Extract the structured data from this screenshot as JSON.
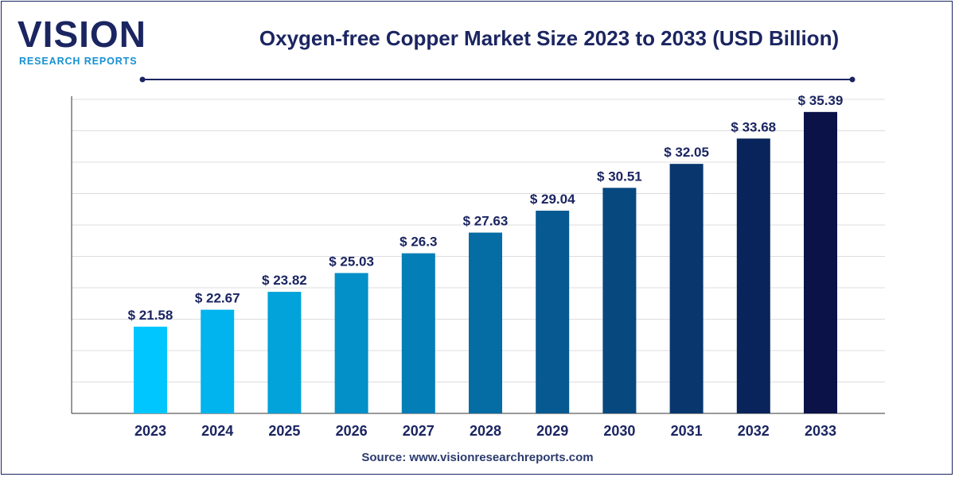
{
  "header": {
    "logo_word": "VISION",
    "logo_sub": "RESEARCH REPORTS",
    "title": "Oxygen-free Copper Market Size 2023 to 2033 (USD Billion)"
  },
  "source": "Source: www.visionresearchreports.com",
  "colors": {
    "brand": "#1b2561",
    "accent": "#1590d3",
    "grid": "#dcdcdc",
    "bar_gradient": [
      "#00c6ff",
      "#0a1248"
    ]
  },
  "chart_data": {
    "type": "bar",
    "title": "Oxygen-free Copper Market Size 2023 to 2033 (USD Billion)",
    "xlabel": "",
    "ylabel": "",
    "categories": [
      "2023",
      "2024",
      "2025",
      "2026",
      "2027",
      "2028",
      "2029",
      "2030",
      "2031",
      "2032",
      "2033"
    ],
    "values": [
      21.58,
      22.67,
      23.82,
      25.03,
      26.3,
      27.63,
      29.04,
      30.51,
      32.05,
      33.68,
      35.39
    ],
    "value_labels": [
      "$ 21.58",
      "$ 22.67",
      "$ 23.82",
      "$ 25.03",
      "$ 26.3",
      "$ 27.63",
      "$ 29.04",
      "$ 30.51",
      "$ 32.05",
      "$ 33.68",
      "$ 35.39"
    ],
    "ylim": [
      16,
      36.2
    ],
    "grid": true,
    "legend": "none"
  }
}
